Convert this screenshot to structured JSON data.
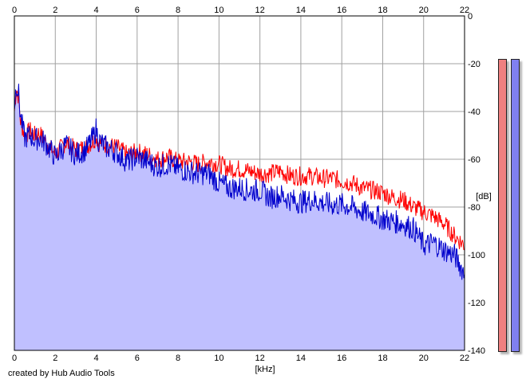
{
  "credit": "created by Hub Audio Tools",
  "chart_data": {
    "type": "area",
    "title": "",
    "xlabel": "[kHz]",
    "ylabel": "[dB]",
    "xlim": [
      0,
      22
    ],
    "ylim": [
      -140,
      0
    ],
    "x_ticks": [
      0,
      2,
      4,
      6,
      8,
      10,
      12,
      14,
      16,
      18,
      20,
      22
    ],
    "y_ticks": [
      0,
      -20,
      -40,
      -60,
      -80,
      -100,
      -120,
      -140
    ],
    "grid": true,
    "x": [
      0.0,
      0.1,
      0.2,
      0.3,
      0.5,
      0.8,
      1.0,
      1.2,
      1.5,
      2.0,
      2.5,
      3.0,
      3.5,
      3.9,
      4.0,
      4.1,
      4.5,
      5.0,
      5.5,
      6.0,
      6.5,
      7.0,
      7.5,
      8.0,
      8.5,
      9.0,
      9.5,
      10.0,
      10.5,
      11.0,
      11.5,
      12.0,
      12.5,
      13.0,
      13.5,
      14.0,
      14.5,
      15.0,
      15.5,
      16.0,
      16.5,
      17.0,
      17.5,
      18.0,
      18.5,
      19.0,
      19.5,
      20.0,
      20.5,
      21.0,
      21.5,
      22.0
    ],
    "series": [
      {
        "color": "#ff0000",
        "values": [
          -40,
          -30,
          -34,
          -44,
          -50,
          -48,
          -50,
          -49,
          -52,
          -58,
          -53,
          -56,
          -55,
          -52,
          -50,
          -53,
          -54,
          -55,
          -58,
          -57,
          -58,
          -60,
          -59,
          -61,
          -61,
          -62,
          -61,
          -62,
          -64,
          -64,
          -65,
          -66,
          -66,
          -65,
          -67,
          -67,
          -67,
          -68,
          -68,
          -69,
          -70,
          -72,
          -73,
          -74,
          -76,
          -77,
          -80,
          -82,
          -84,
          -87,
          -92,
          -96
        ]
      },
      {
        "color": "#0000cc",
        "values": [
          -38,
          -28,
          -32,
          -42,
          -51,
          -50,
          -52,
          -51,
          -53,
          -59,
          -54,
          -58,
          -56,
          -50,
          -47,
          -52,
          -55,
          -57,
          -61,
          -59,
          -61,
          -63,
          -62,
          -64,
          -65,
          -66,
          -66,
          -70,
          -72,
          -72,
          -73,
          -73,
          -76,
          -75,
          -77,
          -78,
          -77,
          -78,
          -79,
          -79,
          -80,
          -82,
          -83,
          -85,
          -86,
          -87,
          -89,
          -96,
          -95,
          -98,
          -100,
          -108
        ]
      }
    ]
  },
  "meters": {
    "left": {
      "color": "#f08080",
      "level": -18
    },
    "right": {
      "color": "#8080f0",
      "level": -18
    }
  }
}
